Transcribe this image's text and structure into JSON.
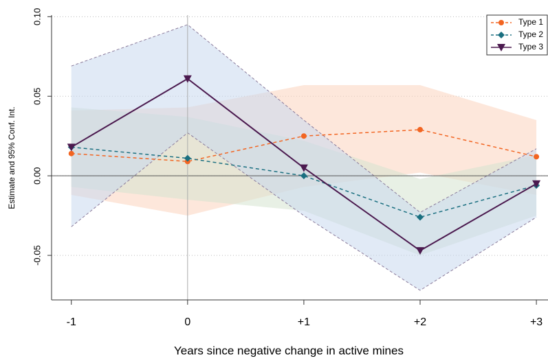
{
  "chart_data": {
    "type": "line",
    "x_label": "Years since negative change in active mines",
    "y_label": "Estimate and 95% Conf. Int.",
    "x": [
      -1,
      0,
      1,
      2,
      3
    ],
    "xlim": [
      -1.17,
      3.1
    ],
    "xticks": [
      -1,
      0,
      {
        "value": 1,
        "label": "+1"
      },
      {
        "value": 2,
        "label": "+2"
      },
      {
        "value": 3,
        "label": "+3"
      }
    ],
    "ylim": [
      -0.078,
      0.101
    ],
    "yticks": [
      -0.05,
      {
        "value": 0,
        "label": "0.00"
      },
      0.05,
      {
        "value": 0.1,
        "label": "0.10"
      }
    ],
    "grid": true,
    "legend": "top-right",
    "series": [
      {
        "name": "Type 1",
        "color": "#f26522",
        "band_color": "#fbd3bd",
        "marker": "circle",
        "dashed": true,
        "values": [
          0.014,
          0.009,
          0.025,
          0.029,
          0.012
        ],
        "upper": [
          0.041,
          0.043,
          0.057,
          0.057,
          0.035
        ],
        "lower": [
          -0.012,
          -0.025,
          -0.007,
          0.002,
          -0.012
        ]
      },
      {
        "name": "Type 2",
        "color": "#1a6f80",
        "band_color": "#d5e3cf",
        "marker": "diamond",
        "dashed": true,
        "values": [
          0.018,
          0.011,
          0.0,
          -0.026,
          -0.006
        ],
        "upper": [
          0.043,
          0.037,
          0.022,
          -0.002,
          0.013
        ],
        "lower": [
          -0.007,
          -0.015,
          -0.022,
          -0.05,
          -0.025
        ]
      },
      {
        "name": "Type 3",
        "color": "#4b1a4f",
        "band_color": "#c9d8ef",
        "marker": "triangle-down",
        "dashed": false,
        "values": [
          0.018,
          0.061,
          0.005,
          -0.047,
          -0.005
        ],
        "upper": [
          0.069,
          0.095,
          0.035,
          -0.023,
          0.017
        ],
        "lower": [
          -0.032,
          0.027,
          -0.025,
          -0.072,
          -0.026
        ]
      }
    ]
  }
}
